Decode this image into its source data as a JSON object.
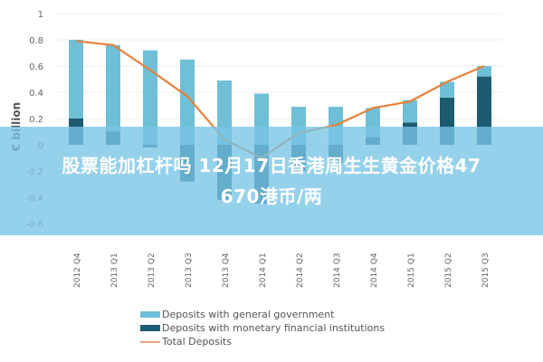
{
  "chart_data": {
    "type": "bar",
    "subtype": "stacked bar with line overlay",
    "title": "",
    "ylabel": "€ billion",
    "xlabel": "",
    "ylim": [
      -0.6,
      1.0
    ],
    "yticks": [
      "1",
      "0.8",
      "0.6",
      "0.4",
      "0.2",
      "0",
      "-0.2",
      "-0.4",
      "-0.6"
    ],
    "grid": true,
    "legend_position": "bottom",
    "categories": [
      "2012 Q4",
      "2013 Q1",
      "2013 Q2",
      "2013 Q3",
      "2013 Q4",
      "2014 Q1",
      "2014 Q2",
      "2014 Q3",
      "2014 Q4",
      "2015 Q1",
      "2015 Q2",
      "2015 Q3"
    ],
    "series": [
      {
        "name": "Deposits with general government",
        "type": "bar",
        "color": "#6fbfd6",
        "values": [
          0.6,
          0.66,
          0.72,
          0.65,
          0.49,
          0.39,
          0.29,
          0.29,
          0.22,
          0.17,
          0.12,
          0.08
        ]
      },
      {
        "name": "Deposits with monetary financial institutions",
        "type": "bar",
        "color": "#1c5a72",
        "values": [
          0.2,
          0.1,
          -0.02,
          -0.28,
          -0.42,
          -0.45,
          -0.2,
          -0.14,
          0.06,
          0.17,
          0.36,
          0.52
        ]
      },
      {
        "name": "Total Deposits",
        "type": "line",
        "color": "#e8803a",
        "values": [
          0.79,
          0.76,
          0.57,
          0.37,
          0.04,
          -0.1,
          0.09,
          0.15,
          0.28,
          0.33,
          0.48,
          0.6
        ]
      }
    ]
  },
  "overlay": {
    "banner_line1": "股票能加杠杆吗 12月17日香港周生生黄金价格47",
    "banner_line2": "670港币/两"
  },
  "legend": {
    "items": [
      {
        "label": "Deposits with general government",
        "color": "#6fbfd6",
        "kind": "bar"
      },
      {
        "label": "Deposits with monetary financial institutions",
        "color": "#1c5a72",
        "kind": "bar"
      },
      {
        "label": "Total Deposits",
        "color": "#f0a080",
        "kind": "line"
      }
    ]
  }
}
